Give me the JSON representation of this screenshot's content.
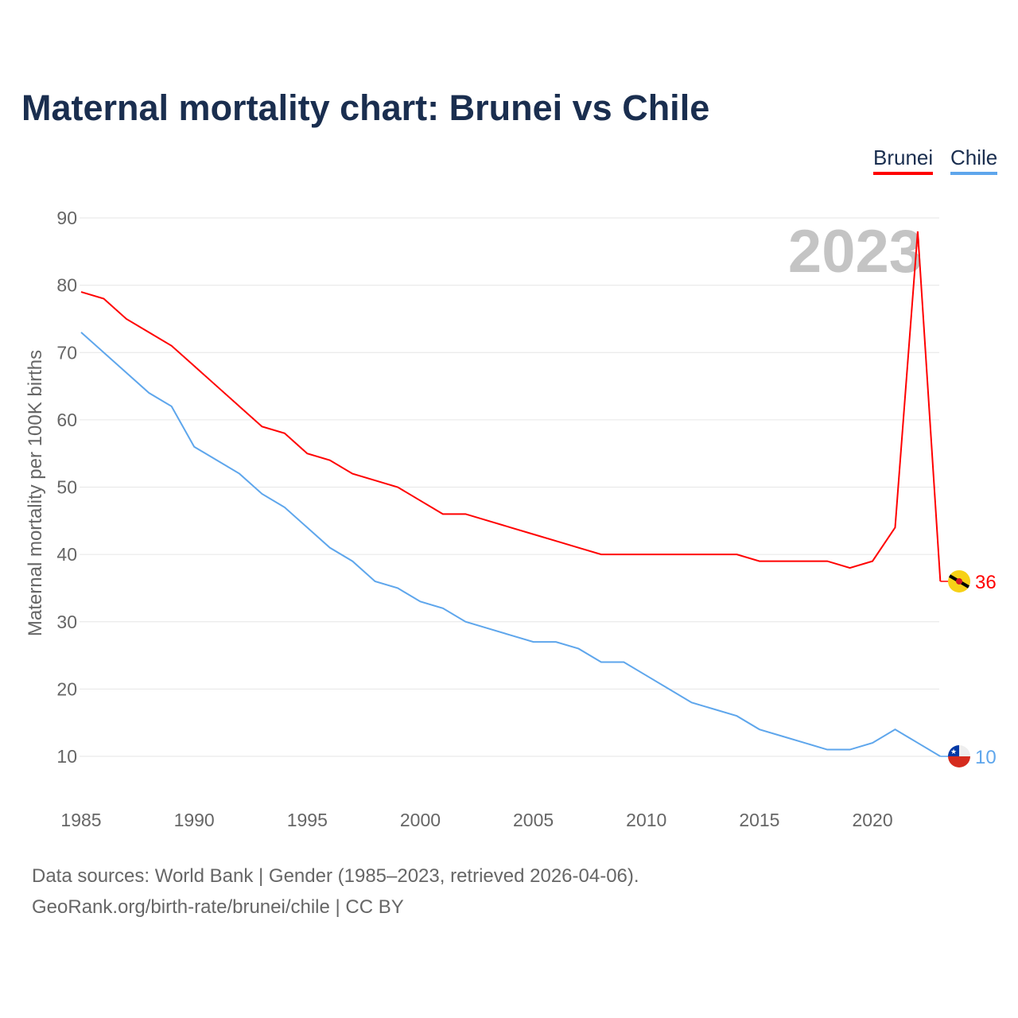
{
  "title": "Maternal mortality chart: Brunei vs Chile",
  "footer": {
    "line1": "Data sources: World Bank | Gender (1985–2023, retrieved 2026-04-06).",
    "line2": "GeoRank.org/birth-rate/brunei/chile | CC BY"
  },
  "chart_data": {
    "type": "line",
    "title": "Maternal mortality chart: Brunei vs Chile",
    "ylabel": "Maternal mortality per 100K births",
    "xlabel": "",
    "year_watermark": "2023",
    "ylim": [
      3,
      93
    ],
    "xlim": [
      1985,
      2023
    ],
    "yticks": [
      10,
      20,
      30,
      40,
      50,
      60,
      70,
      80,
      90
    ],
    "xticks": [
      1985,
      1990,
      1995,
      2000,
      2005,
      2010,
      2015,
      2020
    ],
    "grid": true,
    "legend": "top-right",
    "x": [
      1985,
      1986,
      1987,
      1988,
      1989,
      1990,
      1991,
      1992,
      1993,
      1994,
      1995,
      1996,
      1997,
      1998,
      1999,
      2000,
      2001,
      2002,
      2003,
      2004,
      2005,
      2006,
      2007,
      2008,
      2009,
      2010,
      2011,
      2012,
      2013,
      2014,
      2015,
      2016,
      2017,
      2018,
      2019,
      2020,
      2021,
      2022,
      2023
    ],
    "series": [
      {
        "name": "Brunei",
        "color": "#ff0000",
        "end_label": "36",
        "values": [
          79,
          78,
          75,
          73,
          71,
          68,
          65,
          62,
          59,
          58,
          55,
          54,
          52,
          51,
          50,
          48,
          46,
          46,
          45,
          44,
          43,
          42,
          41,
          40,
          40,
          40,
          40,
          40,
          40,
          40,
          39,
          39,
          39,
          39,
          38,
          39,
          44,
          88,
          36
        ]
      },
      {
        "name": "Chile",
        "color": "#5ea6ec",
        "end_label": "10",
        "values": [
          73,
          70,
          67,
          64,
          62,
          56,
          54,
          52,
          49,
          47,
          44,
          41,
          39,
          36,
          35,
          33,
          32,
          30,
          29,
          28,
          27,
          27,
          26,
          24,
          24,
          22,
          20,
          18,
          17,
          16,
          14,
          13,
          12,
          11,
          11,
          12,
          14,
          12,
          10
        ]
      }
    ]
  }
}
